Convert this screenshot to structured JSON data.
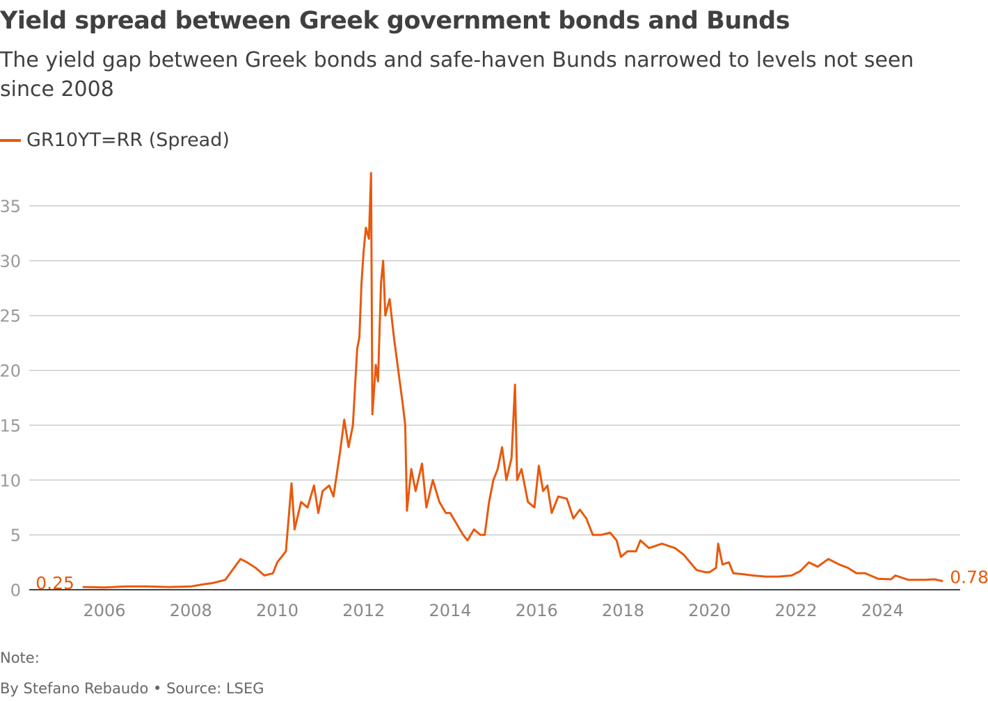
{
  "title": "Yield spread between Greek government bonds and Bunds",
  "subtitle": "The yield gap between Greek bonds and safe-haven Bunds narrowed to levels not seen since 2008",
  "note": "Note:",
  "source": "By Stefano Rebaudo • Source: LSEG",
  "colors": {
    "series": "#e8590c",
    "grid": "#cccccc",
    "axis": "#404040",
    "tick_text": "#999999"
  },
  "chart_data": {
    "type": "line",
    "title": "Yield spread between Greek government bonds and Bunds",
    "xlabel": "",
    "ylabel": "",
    "ylim": [
      0,
      38
    ],
    "xlim": [
      2004.7,
      2026.0
    ],
    "grid": true,
    "legend_placement": "top-left",
    "yticks": [
      0,
      5,
      10,
      15,
      20,
      25,
      30,
      35
    ],
    "xticks": [
      2006,
      2008,
      2010,
      2012,
      2014,
      2016,
      2018,
      2020,
      2022,
      2024
    ],
    "series": [
      {
        "name": "GR10YT=RR (Spread)",
        "start_label": "0.25",
        "end_label": "0.78",
        "points": [
          [
            2005.5,
            0.25
          ],
          [
            2006.0,
            0.2
          ],
          [
            2006.5,
            0.3
          ],
          [
            2007.0,
            0.3
          ],
          [
            2007.5,
            0.25
          ],
          [
            2008.0,
            0.3
          ],
          [
            2008.3,
            0.5
          ],
          [
            2008.5,
            0.6
          ],
          [
            2008.8,
            0.9
          ],
          [
            2009.0,
            2.0
          ],
          [
            2009.15,
            2.8
          ],
          [
            2009.3,
            2.5
          ],
          [
            2009.5,
            2.0
          ],
          [
            2009.7,
            1.3
          ],
          [
            2009.9,
            1.5
          ],
          [
            2010.0,
            2.5
          ],
          [
            2010.2,
            3.5
          ],
          [
            2010.33,
            9.7
          ],
          [
            2010.4,
            5.5
          ],
          [
            2010.55,
            8.0
          ],
          [
            2010.7,
            7.5
          ],
          [
            2010.85,
            9.5
          ],
          [
            2010.95,
            7.0
          ],
          [
            2011.05,
            9.0
          ],
          [
            2011.2,
            9.5
          ],
          [
            2011.3,
            8.5
          ],
          [
            2011.45,
            12.5
          ],
          [
            2011.55,
            15.5
          ],
          [
            2011.65,
            13.0
          ],
          [
            2011.75,
            15.0
          ],
          [
            2011.85,
            22.0
          ],
          [
            2011.9,
            23.0
          ],
          [
            2011.95,
            28.0
          ],
          [
            2012.0,
            31.0
          ],
          [
            2012.05,
            33.0
          ],
          [
            2012.12,
            32.0
          ],
          [
            2012.17,
            38.0
          ],
          [
            2012.2,
            16.0
          ],
          [
            2012.28,
            20.5
          ],
          [
            2012.33,
            19.0
          ],
          [
            2012.4,
            28.0
          ],
          [
            2012.45,
            30.0
          ],
          [
            2012.5,
            25.0
          ],
          [
            2012.6,
            26.5
          ],
          [
            2012.7,
            23.0
          ],
          [
            2012.8,
            20.0
          ],
          [
            2012.9,
            17.0
          ],
          [
            2012.96,
            15.0
          ],
          [
            2013.0,
            7.2
          ],
          [
            2013.1,
            11.0
          ],
          [
            2013.2,
            9.0
          ],
          [
            2013.35,
            11.5
          ],
          [
            2013.45,
            7.5
          ],
          [
            2013.6,
            10.0
          ],
          [
            2013.75,
            8.0
          ],
          [
            2013.9,
            7.0
          ],
          [
            2014.0,
            7.0
          ],
          [
            2014.15,
            6.0
          ],
          [
            2014.3,
            5.0
          ],
          [
            2014.4,
            4.5
          ],
          [
            2014.55,
            5.5
          ],
          [
            2014.7,
            5.0
          ],
          [
            2014.8,
            5.0
          ],
          [
            2014.9,
            8.0
          ],
          [
            2015.0,
            10.0
          ],
          [
            2015.1,
            11.0
          ],
          [
            2015.2,
            13.0
          ],
          [
            2015.3,
            10.0
          ],
          [
            2015.42,
            12.0
          ],
          [
            2015.5,
            18.7
          ],
          [
            2015.55,
            10.0
          ],
          [
            2015.65,
            11.0
          ],
          [
            2015.8,
            8.0
          ],
          [
            2015.95,
            7.5
          ],
          [
            2016.05,
            11.3
          ],
          [
            2016.15,
            9.0
          ],
          [
            2016.25,
            9.5
          ],
          [
            2016.35,
            7.0
          ],
          [
            2016.5,
            8.5
          ],
          [
            2016.7,
            8.3
          ],
          [
            2016.85,
            6.5
          ],
          [
            2017.0,
            7.3
          ],
          [
            2017.15,
            6.5
          ],
          [
            2017.3,
            5.0
          ],
          [
            2017.5,
            5.0
          ],
          [
            2017.7,
            5.2
          ],
          [
            2017.85,
            4.5
          ],
          [
            2017.95,
            3.0
          ],
          [
            2018.1,
            3.5
          ],
          [
            2018.3,
            3.5
          ],
          [
            2018.4,
            4.5
          ],
          [
            2018.6,
            3.8
          ],
          [
            2018.9,
            4.2
          ],
          [
            2019.2,
            3.8
          ],
          [
            2019.4,
            3.2
          ],
          [
            2019.55,
            2.5
          ],
          [
            2019.7,
            1.8
          ],
          [
            2019.9,
            1.6
          ],
          [
            2020.0,
            1.6
          ],
          [
            2020.15,
            2.0
          ],
          [
            2020.2,
            4.2
          ],
          [
            2020.3,
            2.3
          ],
          [
            2020.45,
            2.5
          ],
          [
            2020.55,
            1.5
          ],
          [
            2020.8,
            1.4
          ],
          [
            2021.0,
            1.3
          ],
          [
            2021.3,
            1.2
          ],
          [
            2021.6,
            1.2
          ],
          [
            2021.9,
            1.3
          ],
          [
            2022.1,
            1.7
          ],
          [
            2022.3,
            2.5
          ],
          [
            2022.5,
            2.1
          ],
          [
            2022.75,
            2.8
          ],
          [
            2023.0,
            2.3
          ],
          [
            2023.2,
            2.0
          ],
          [
            2023.4,
            1.5
          ],
          [
            2023.6,
            1.5
          ],
          [
            2023.9,
            1.0
          ],
          [
            2024.2,
            0.95
          ],
          [
            2024.3,
            1.3
          ],
          [
            2024.6,
            0.9
          ],
          [
            2025.0,
            0.9
          ],
          [
            2025.2,
            0.95
          ],
          [
            2025.4,
            0.78
          ]
        ]
      }
    ]
  }
}
